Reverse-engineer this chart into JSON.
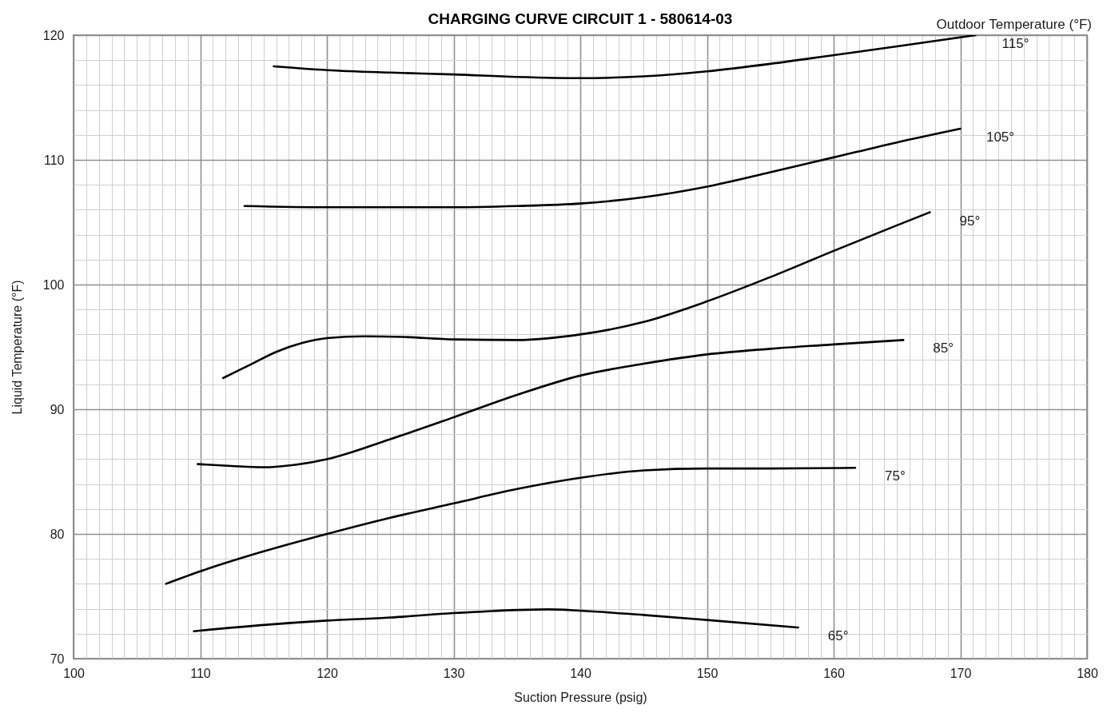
{
  "chart_data": {
    "type": "line",
    "title": "CHARGING CURVE CIRCUIT 1 - 580614-03",
    "xlabel": "Suction Pressure (psig)",
    "ylabel": "Liquid Temperature (°F)",
    "legend_title": "Outdoor Temperature (°F)",
    "xlim": [
      100,
      180
    ],
    "ylim": [
      70,
      120
    ],
    "xticks": [
      100,
      {
        "value": 101,
        "label": null
      },
      {
        "value": 102,
        "label": null
      },
      {
        "value": 103,
        "label": null
      },
      {
        "value": 104,
        "label": null
      },
      {
        "value": 105,
        "label": null
      },
      {
        "value": 106,
        "label": null
      },
      {
        "value": 107,
        "label": null
      },
      {
        "value": 108,
        "label": null
      },
      {
        "value": 109,
        "label": null
      },
      110,
      {
        "value": 111,
        "label": null
      },
      {
        "value": 112,
        "label": null
      },
      {
        "value": 113,
        "label": null
      },
      {
        "value": 114,
        "label": null
      },
      {
        "value": 115,
        "label": null
      },
      {
        "value": 116,
        "label": null
      },
      {
        "value": 117,
        "label": null
      },
      {
        "value": 118,
        "label": null
      },
      {
        "value": 119,
        "label": null
      },
      120,
      {
        "value": 121,
        "label": null
      },
      {
        "value": 122,
        "label": null
      },
      {
        "value": 123,
        "label": null
      },
      {
        "value": 124,
        "label": null
      },
      {
        "value": 125,
        "label": null
      },
      {
        "value": 126,
        "label": null
      },
      {
        "value": 127,
        "label": null
      },
      {
        "value": 128,
        "label": null
      },
      {
        "value": 129,
        "label": null
      },
      130,
      {
        "value": 131,
        "label": null
      },
      {
        "value": 132,
        "label": null
      },
      {
        "value": 133,
        "label": null
      },
      {
        "value": 134,
        "label": null
      },
      {
        "value": 135,
        "label": null
      },
      {
        "value": 136,
        "label": null
      },
      {
        "value": 137,
        "label": null
      },
      {
        "value": 138,
        "label": null
      },
      {
        "value": 139,
        "label": null
      },
      140,
      {
        "value": 141,
        "label": null
      },
      {
        "value": 142,
        "label": null
      },
      {
        "value": 143,
        "label": null
      },
      {
        "value": 144,
        "label": null
      },
      {
        "value": 145,
        "label": null
      },
      {
        "value": 146,
        "label": null
      },
      {
        "value": 147,
        "label": null
      },
      {
        "value": 148,
        "label": null
      },
      {
        "value": 149,
        "label": null
      },
      150,
      {
        "value": 151,
        "label": null
      },
      {
        "value": 152,
        "label": null
      },
      {
        "value": 153,
        "label": null
      },
      {
        "value": 154,
        "label": null
      },
      {
        "value": 155,
        "label": null
      },
      {
        "value": 156,
        "label": null
      },
      {
        "value": 157,
        "label": null
      },
      {
        "value": 158,
        "label": null
      },
      {
        "value": 159,
        "label": null
      },
      160,
      {
        "value": 161,
        "label": null
      },
      {
        "value": 162,
        "label": null
      },
      {
        "value": 163,
        "label": null
      },
      {
        "value": 164,
        "label": null
      },
      {
        "value": 165,
        "label": null
      },
      {
        "value": 166,
        "label": null
      },
      {
        "value": 167,
        "label": null
      },
      {
        "value": 168,
        "label": null
      },
      {
        "value": 169,
        "label": null
      },
      170,
      {
        "value": 171,
        "label": null
      },
      {
        "value": 172,
        "label": null
      },
      {
        "value": 173,
        "label": null
      },
      {
        "value": 174,
        "label": null
      },
      {
        "value": 175,
        "label": null
      },
      {
        "value": 176,
        "label": null
      },
      {
        "value": 177,
        "label": null
      },
      {
        "value": 178,
        "label": null
      },
      {
        "value": 179,
        "label": null
      },
      180
    ],
    "yticks": [
      70,
      {
        "value": 72,
        "label": null
      },
      {
        "value": 74,
        "label": null
      },
      {
        "value": 76,
        "label": null
      },
      {
        "value": 78,
        "label": null
      },
      80,
      {
        "value": 82,
        "label": null
      },
      {
        "value": 84,
        "label": null
      },
      {
        "value": 86,
        "label": null
      },
      {
        "value": 88,
        "label": null
      },
      90,
      {
        "value": 92,
        "label": null
      },
      {
        "value": 94,
        "label": null
      },
      {
        "value": 96,
        "label": null
      },
      {
        "value": 98,
        "label": null
      },
      100,
      {
        "value": 102,
        "label": null
      },
      {
        "value": 104,
        "label": null
      },
      {
        "value": 106,
        "label": null
      },
      {
        "value": 108,
        "label": null
      },
      110,
      {
        "value": 112,
        "label": null
      },
      {
        "value": 114,
        "label": null
      },
      {
        "value": 116,
        "label": null
      },
      {
        "value": 118,
        "label": null
      },
      120
    ],
    "grid": true,
    "series": [
      {
        "name": "115°",
        "color": "#000000",
        "x": [
          115.8,
          120,
          125,
          130,
          135,
          140,
          145,
          150,
          155,
          160,
          165,
          171.2
        ],
        "values": [
          117.5,
          117.2,
          117.0,
          116.85,
          116.65,
          116.55,
          116.7,
          117.1,
          117.7,
          118.4,
          119.1,
          120
        ]
      },
      {
        "name": "105°",
        "color": "#000000",
        "x": [
          113.5,
          120,
          125,
          130,
          135,
          140,
          145,
          150,
          155,
          160,
          165,
          170
        ],
        "values": [
          106.3,
          106.2,
          106.2,
          106.2,
          106.3,
          106.5,
          107.0,
          107.85,
          109.0,
          110.2,
          111.4,
          112.5
        ]
      },
      {
        "name": "95°",
        "color": "#000000",
        "x": [
          111.8,
          114,
          116,
          118,
          120,
          123,
          126,
          130,
          135,
          140,
          145,
          150,
          155,
          160,
          165,
          167.6
        ],
        "values": [
          92.5,
          93.6,
          94.6,
          95.3,
          95.7,
          95.85,
          95.8,
          95.6,
          95.55,
          96.0,
          97.0,
          98.65,
          100.6,
          102.7,
          104.75,
          105.8
        ]
      },
      {
        "name": "85°",
        "color": "#000000",
        "x": [
          109.8,
          112.5,
          115,
          117.5,
          120,
          125,
          130,
          135,
          140,
          145,
          150,
          155,
          160,
          165.5
        ],
        "values": [
          85.6,
          85.45,
          85.35,
          85.55,
          86.0,
          87.6,
          89.35,
          91.15,
          92.7,
          93.65,
          94.4,
          94.85,
          95.2,
          95.55
        ]
      },
      {
        "name": "75°",
        "color": "#000000",
        "x": [
          107.3,
          110,
          115,
          120,
          125,
          130,
          135,
          140,
          145,
          150,
          155,
          161.7
        ],
        "values": [
          76.0,
          77.0,
          78.6,
          80.0,
          81.3,
          82.45,
          83.6,
          84.5,
          85.1,
          85.25,
          85.25,
          85.3
        ]
      },
      {
        "name": "65°",
        "color": "#000000",
        "x": [
          109.5,
          115,
          120,
          125,
          130,
          135,
          137.5,
          140,
          145,
          150,
          157.2
        ],
        "values": [
          72.2,
          72.7,
          73.05,
          73.3,
          73.65,
          73.9,
          73.95,
          73.85,
          73.5,
          73.1,
          72.5
        ]
      }
    ]
  }
}
